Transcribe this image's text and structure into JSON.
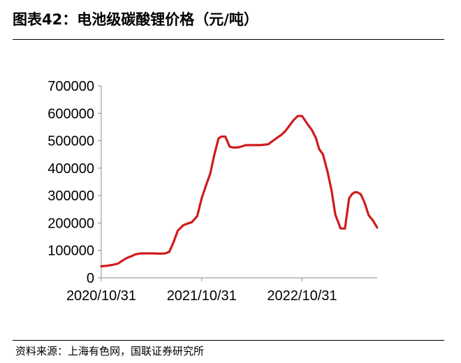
{
  "figure": {
    "title": "图表42：电池级碳酸锂价格（元/吨）",
    "source": "资料来源：上海有色网，国联证券研究所"
  },
  "chart_data": {
    "type": "line",
    "title": "图表42：电池级碳酸锂价格（元/吨）",
    "xlabel": "",
    "ylabel": "",
    "ylim": [
      0,
      700000
    ],
    "yticks": [
      0,
      100000,
      200000,
      300000,
      400000,
      500000,
      600000,
      700000
    ],
    "xlim": [
      "2020-10-31",
      "2023-07-31"
    ],
    "xticks": [
      "2020/10/31",
      "2021/10/31",
      "2022/10/31"
    ],
    "grid": false,
    "legend": "none",
    "series": [
      {
        "color": "#d01b1b",
        "x": [
          "2020-10-31",
          "2020-11-20",
          "2020-12-10",
          "2020-12-31",
          "2021-01-15",
          "2021-01-31",
          "2021-02-15",
          "2021-03-05",
          "2021-03-25",
          "2021-04-15",
          "2021-05-10",
          "2021-05-31",
          "2021-06-20",
          "2021-07-05",
          "2021-07-20",
          "2021-08-05",
          "2021-08-25",
          "2021-09-10",
          "2021-09-25",
          "2021-10-15",
          "2021-10-31",
          "2021-11-15",
          "2021-12-01",
          "2021-12-15",
          "2021-12-31",
          "2022-01-10",
          "2022-01-25",
          "2022-02-10",
          "2022-02-25",
          "2022-03-15",
          "2022-04-10",
          "2022-05-01",
          "2022-05-31",
          "2022-06-30",
          "2022-07-31",
          "2022-08-15",
          "2022-08-31",
          "2022-09-15",
          "2022-09-30",
          "2022-10-15",
          "2022-10-31",
          "2022-11-10",
          "2022-11-20",
          "2022-12-05",
          "2022-12-20",
          "2023-01-01",
          "2023-01-15",
          "2023-02-01",
          "2023-02-15",
          "2023-03-01",
          "2023-03-20",
          "2023-04-05",
          "2023-04-20",
          "2023-04-30",
          "2023-05-10",
          "2023-05-20",
          "2023-06-01",
          "2023-06-15",
          "2023-06-30",
          "2023-07-15",
          "2023-07-31"
        ],
        "y": [
          42000,
          44000,
          47000,
          52000,
          62000,
          72000,
          78000,
          86000,
          89000,
          89000,
          89000,
          88000,
          89000,
          95000,
          128000,
          172000,
          192000,
          198000,
          203000,
          225000,
          290000,
          335000,
          380000,
          445000,
          508000,
          515000,
          515000,
          478000,
          475000,
          476000,
          484000,
          484000,
          484000,
          487000,
          510000,
          520000,
          535000,
          555000,
          575000,
          590000,
          590000,
          575000,
          560000,
          540000,
          510000,
          470000,
          450000,
          385000,
          320000,
          230000,
          180000,
          180000,
          290000,
          305000,
          312000,
          312000,
          305000,
          275000,
          228000,
          210000,
          183000
        ]
      }
    ]
  }
}
